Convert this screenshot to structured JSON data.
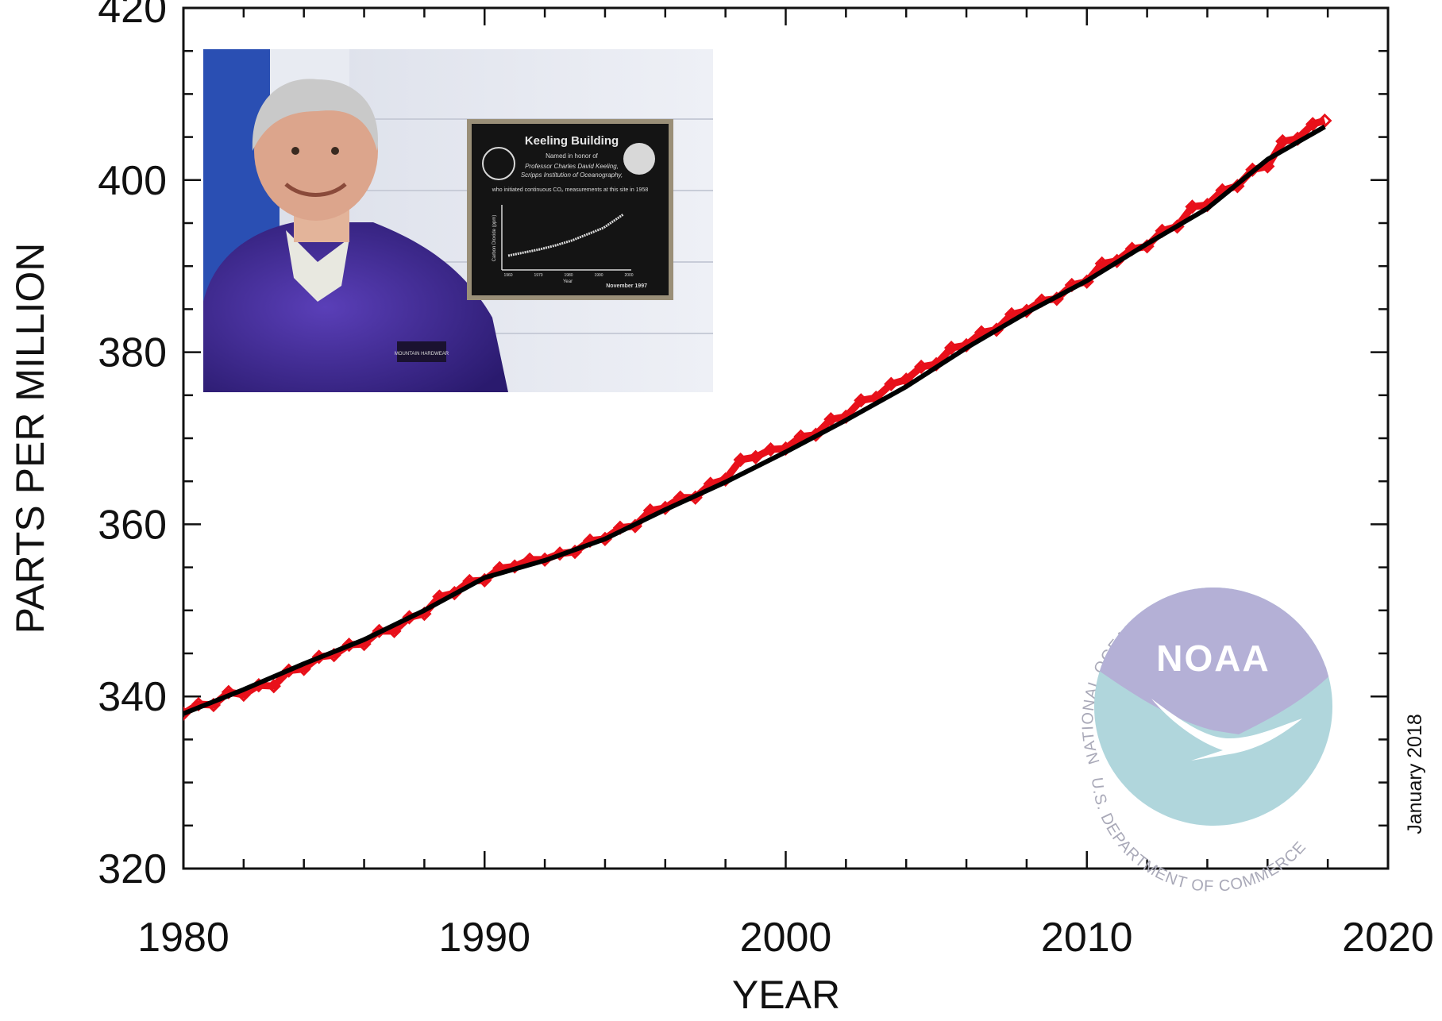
{
  "chart_data": {
    "type": "line",
    "title": "",
    "xlabel": "YEAR",
    "ylabel": "PARTS PER MILLION",
    "xlim": [
      1980,
      2020
    ],
    "ylim": [
      320,
      420
    ],
    "x_ticks": [
      1980,
      1990,
      2000,
      2010,
      2020
    ],
    "y_ticks": [
      320,
      340,
      360,
      380,
      400,
      420
    ],
    "grid": false,
    "legend": "none",
    "date_stamp": "January 2018",
    "series": [
      {
        "marker": "red diamonds, monthly mean",
        "color": "#e8101a",
        "x": [
          1980.0,
          1980.5,
          1981.0,
          1981.5,
          1982.0,
          1982.5,
          1983.0,
          1983.5,
          1984.0,
          1984.5,
          1985.0,
          1985.5,
          1986.0,
          1986.5,
          1987.0,
          1987.5,
          1988.0,
          1988.5,
          1989.0,
          1989.5,
          1990.0,
          1990.5,
          1991.0,
          1991.5,
          1992.0,
          1992.5,
          1993.0,
          1993.5,
          1994.0,
          1994.5,
          1995.0,
          1995.5,
          1996.0,
          1996.5,
          1997.0,
          1997.5,
          1998.0,
          1998.5,
          1999.0,
          1999.5,
          2000.0,
          2000.5,
          2001.0,
          2001.5,
          2002.0,
          2002.5,
          2003.0,
          2003.5,
          2004.0,
          2004.5,
          2005.0,
          2005.5,
          2006.0,
          2006.5,
          2007.0,
          2007.5,
          2008.0,
          2008.5,
          2009.0,
          2009.5,
          2010.0,
          2010.5,
          2011.0,
          2011.5,
          2012.0,
          2012.5,
          2013.0,
          2013.5,
          2014.0,
          2014.5,
          2015.0,
          2015.5,
          2016.0,
          2016.5,
          2017.0,
          2017.5,
          2017.9
        ],
        "y": [
          338.0,
          339.1,
          339.0,
          340.5,
          340.2,
          341.3,
          341.2,
          343.0,
          343.2,
          344.6,
          344.8,
          346.0,
          346.1,
          347.6,
          347.6,
          349.2,
          349.6,
          351.6,
          352.0,
          353.4,
          353.5,
          354.9,
          355.1,
          355.9,
          355.9,
          356.6,
          356.8,
          358.1,
          358.3,
          359.6,
          359.8,
          361.6,
          361.9,
          363.1,
          363.1,
          364.7,
          365.2,
          367.5,
          367.8,
          368.7,
          368.8,
          370.2,
          370.4,
          372.2,
          372.5,
          374.4,
          374.7,
          376.3,
          376.8,
          378.3,
          378.6,
          380.5,
          380.8,
          382.3,
          382.6,
          384.4,
          384.8,
          386.0,
          386.2,
          387.8,
          388.2,
          390.3,
          390.6,
          392.0,
          392.3,
          394.1,
          394.6,
          396.9,
          397.1,
          398.8,
          399.3,
          401.2,
          401.6,
          404.5,
          404.8,
          406.5,
          406.9
        ]
      },
      {
        "marker": "black line, seasonally corrected trend",
        "color": "#000000",
        "x": [
          1980,
          1982,
          1984,
          1986,
          1988,
          1990,
          1992,
          1994,
          1996,
          1998,
          2000,
          2002,
          2004,
          2006,
          2008,
          2010,
          2012,
          2014,
          2016,
          2017.9
        ],
        "y": [
          338.0,
          340.8,
          343.8,
          346.6,
          350.0,
          353.8,
          355.8,
          358.3,
          361.7,
          364.9,
          368.4,
          372.1,
          376.0,
          380.5,
          384.6,
          388.3,
          392.6,
          396.7,
          402.4,
          406.2
        ]
      }
    ]
  },
  "inset_photo": {
    "plaque_title": "Keeling Building",
    "plaque_subtitle": "Named in honor of",
    "plaque_name": "Professor Charles David Keeling,",
    "plaque_institution": "Scripps Institution of Oceanography,",
    "plaque_caption": "who initiated continuous CO₂ measurements at this site in 1958",
    "plaque_date": "November 1997",
    "plaque_axis_y": "Carbon Dioxide (ppm)",
    "plaque_axis_x": "Year",
    "plaque_ticks_x": [
      "1960",
      "1970",
      "1980",
      "1990",
      "2000"
    ],
    "jacket_label": "MOUNTAIN HARDWEAR"
  },
  "noaa_logo": {
    "center_text": "NOAA",
    "ring_top": "NATIONAL OCEANIC AND ATMOSPHERIC ADMINISTRATION",
    "ring_bottom": "U.S. DEPARTMENT OF COMMERCE",
    "colors": {
      "sky": "#b4b0d6",
      "sea": "#b0d6dc",
      "ring_text": "#a9a9b8"
    }
  }
}
